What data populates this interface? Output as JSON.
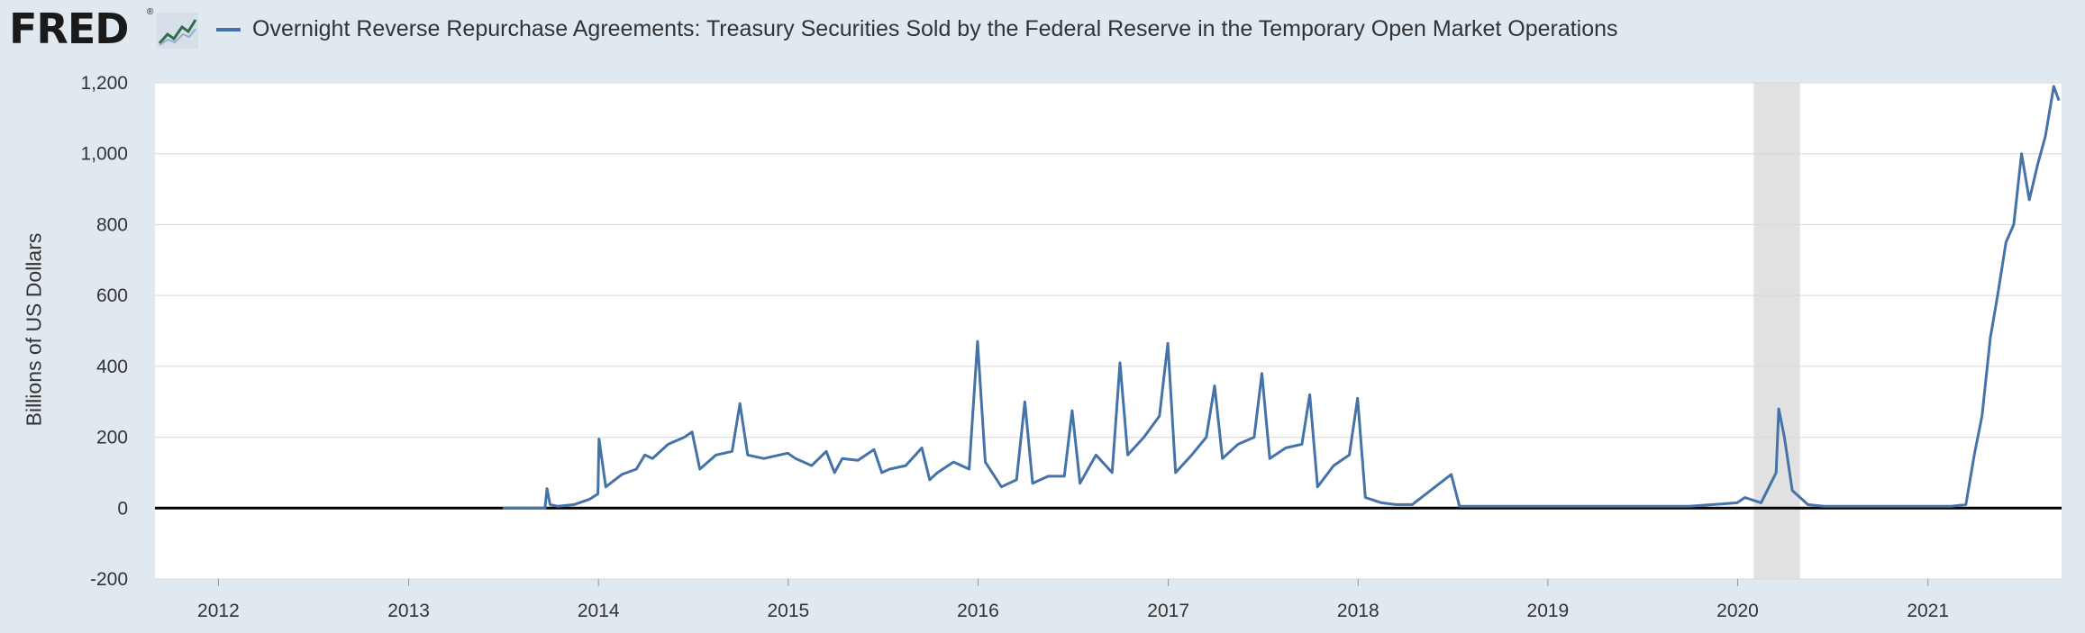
{
  "header": {
    "logo_text": "FRED",
    "logo_mark": "®",
    "logo_icon": "line-chart-icon",
    "title": "Overnight Reverse Repurchase Agreements: Treasury Securities Sold by the Federal Reserve in the Temporary Open Market Operations"
  },
  "colors": {
    "series": "#4572a7",
    "plot_background": "#ffffff",
    "page_background": "#e1e9f0",
    "recession": "#e1e1e1",
    "zero_line": "#000000"
  },
  "chart_data": {
    "type": "line",
    "title": "",
    "xlabel": "",
    "ylabel": "Billions of US Dollars",
    "xlim": [
      "2011-09-01",
      "2021-09-15"
    ],
    "ylim": [
      -200,
      1200
    ],
    "x_ticks": [
      "2012",
      "2013",
      "2014",
      "2015",
      "2016",
      "2017",
      "2018",
      "2019",
      "2020",
      "2021"
    ],
    "y_ticks": [
      "-200",
      "0",
      "200",
      "400",
      "600",
      "800",
      "1,000",
      "1,200"
    ],
    "grid": "horizontal",
    "legend": "top",
    "recession_shading": [
      [
        "2020-02-01",
        "2020-04-30"
      ]
    ],
    "series": [
      {
        "name": "Overnight Reverse Repurchase Agreements: Treasury Securities Sold by the Federal Reserve in the Temporary Open Market Operations",
        "x": [
          "2013-07-01",
          "2013-09-20",
          "2013-09-24",
          "2013-09-30",
          "2013-10-15",
          "2013-11-15",
          "2013-12-15",
          "2013-12-31",
          "2014-01-02",
          "2014-01-15",
          "2014-02-15",
          "2014-03-15",
          "2014-03-31",
          "2014-04-15",
          "2014-05-15",
          "2014-06-15",
          "2014-06-30",
          "2014-07-15",
          "2014-08-15",
          "2014-09-15",
          "2014-09-30",
          "2014-10-15",
          "2014-11-15",
          "2014-12-15",
          "2014-12-31",
          "2015-01-15",
          "2015-02-15",
          "2015-03-15",
          "2015-03-31",
          "2015-04-15",
          "2015-05-15",
          "2015-06-15",
          "2015-06-30",
          "2015-07-15",
          "2015-08-15",
          "2015-09-15",
          "2015-09-30",
          "2015-10-15",
          "2015-11-15",
          "2015-12-15",
          "2015-12-31",
          "2016-01-15",
          "2016-02-15",
          "2016-03-15",
          "2016-03-31",
          "2016-04-15",
          "2016-05-15",
          "2016-06-15",
          "2016-06-30",
          "2016-07-15",
          "2016-08-15",
          "2016-09-15",
          "2016-09-30",
          "2016-10-15",
          "2016-11-15",
          "2016-12-15",
          "2016-12-31",
          "2017-01-15",
          "2017-02-15",
          "2017-03-15",
          "2017-03-31",
          "2017-04-15",
          "2017-05-15",
          "2017-06-15",
          "2017-06-30",
          "2017-07-15",
          "2017-08-15",
          "2017-09-15",
          "2017-09-30",
          "2017-10-15",
          "2017-11-15",
          "2017-12-15",
          "2017-12-31",
          "2018-01-15",
          "2018-02-15",
          "2018-03-15",
          "2018-04-15",
          "2018-06-29",
          "2018-07-15",
          "2018-09-15",
          "2018-12-31",
          "2019-03-31",
          "2019-06-30",
          "2019-09-30",
          "2019-12-31",
          "2020-01-15",
          "2020-02-15",
          "2020-03-15",
          "2020-03-20",
          "2020-03-31",
          "2020-04-15",
          "2020-05-15",
          "2020-06-15",
          "2020-09-15",
          "2020-12-31",
          "2021-02-15",
          "2021-03-15",
          "2021-03-31",
          "2021-04-15",
          "2021-05-01",
          "2021-05-15",
          "2021-05-31",
          "2021-06-15",
          "2021-06-30",
          "2021-07-15",
          "2021-07-31",
          "2021-08-15",
          "2021-08-31",
          "2021-09-10"
        ],
        "values": [
          0,
          0,
          55,
          10,
          5,
          10,
          25,
          40,
          195,
          60,
          95,
          110,
          150,
          140,
          180,
          200,
          215,
          110,
          150,
          160,
          295,
          150,
          140,
          150,
          155,
          140,
          120,
          160,
          100,
          140,
          135,
          165,
          100,
          110,
          120,
          170,
          80,
          100,
          130,
          110,
          470,
          130,
          60,
          80,
          300,
          70,
          90,
          90,
          275,
          70,
          150,
          100,
          410,
          150,
          200,
          260,
          465,
          100,
          150,
          200,
          345,
          140,
          180,
          200,
          380,
          140,
          170,
          180,
          320,
          60,
          120,
          150,
          310,
          30,
          15,
          10,
          10,
          95,
          5,
          5,
          5,
          5,
          5,
          5,
          15,
          30,
          15,
          100,
          280,
          200,
          50,
          10,
          5,
          5,
          5,
          5,
          10,
          150,
          260,
          480,
          600,
          750,
          800,
          1000,
          870,
          970,
          1050,
          1190,
          1150
        ]
      }
    ]
  }
}
